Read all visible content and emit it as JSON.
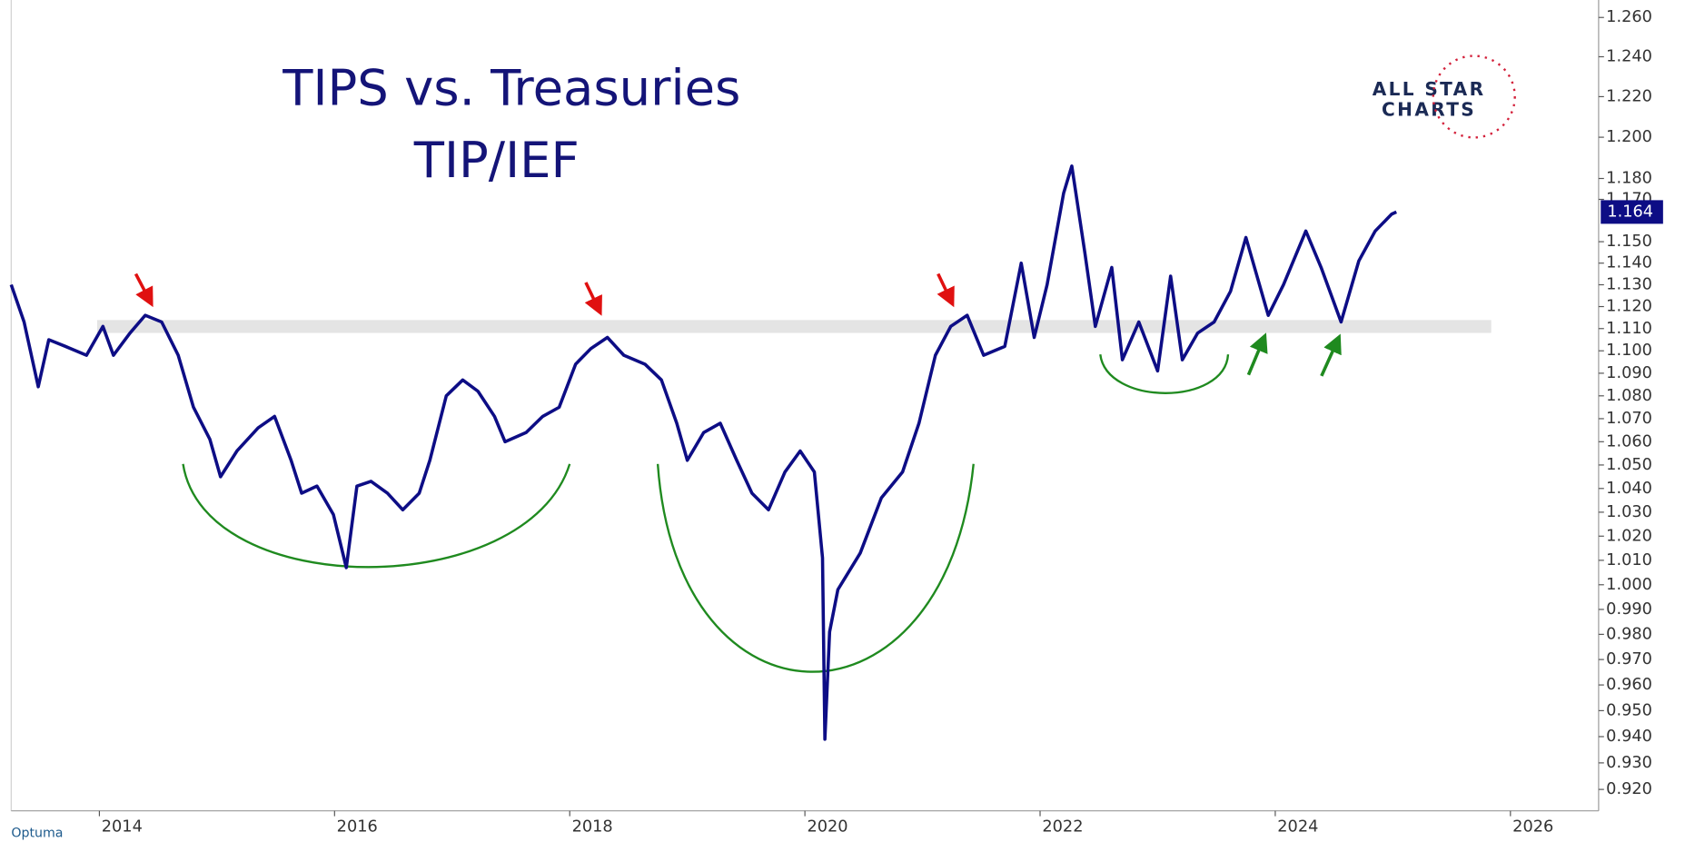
{
  "chart_data": {
    "type": "line",
    "title": "TIPS vs. Treasuries",
    "subtitle": "TIP/IEF",
    "log": true,
    "xlim": [
      2013.25,
      2026.75
    ],
    "xticks": [
      2014,
      2016,
      2018,
      2020,
      2022,
      2024,
      2026
    ],
    "ylim": [
      0.912,
      1.269
    ],
    "yticks": [
      {
        "value": 0.92,
        "label": "0.920"
      },
      {
        "value": 0.93,
        "label": "0.930"
      },
      {
        "value": 0.94,
        "label": "0.940"
      },
      {
        "value": 0.95,
        "label": "0.950"
      },
      {
        "value": 0.96,
        "label": "0.960"
      },
      {
        "value": 0.97,
        "label": "0.970"
      },
      {
        "value": 0.98,
        "label": "0.980"
      },
      {
        "value": 0.99,
        "label": "0.990"
      },
      {
        "value": 1.0,
        "label": "1.000"
      },
      {
        "value": 1.01,
        "label": "1.010"
      },
      {
        "value": 1.02,
        "label": "1.020"
      },
      {
        "value": 1.03,
        "label": "1.030"
      },
      {
        "value": 1.04,
        "label": "1.040"
      },
      {
        "value": 1.05,
        "label": "1.050"
      },
      {
        "value": 1.06,
        "label": "1.060"
      },
      {
        "value": 1.07,
        "label": "1.070"
      },
      {
        "value": 1.08,
        "label": "1.080"
      },
      {
        "value": 1.09,
        "label": "1.090"
      },
      {
        "value": 1.1,
        "label": "1.100"
      },
      {
        "value": 1.11,
        "label": "1.110"
      },
      {
        "value": 1.12,
        "label": "1.120"
      },
      {
        "value": 1.13,
        "label": "1.130"
      },
      {
        "value": 1.14,
        "label": "1.140"
      },
      {
        "value": 1.15,
        "label": "1.150"
      },
      {
        "value": 1.17,
        "label": "1.170"
      },
      {
        "value": 1.18,
        "label": "1.180"
      },
      {
        "value": 1.2,
        "label": "1.200"
      },
      {
        "value": 1.22,
        "label": "1.220"
      },
      {
        "value": 1.24,
        "label": "1.240"
      },
      {
        "value": 1.26,
        "label": "1.260"
      }
    ],
    "x": [
      2013.25,
      2013.36,
      2013.48,
      2013.57,
      2013.71,
      2013.89,
      2014.03,
      2014.12,
      2014.26,
      2014.39,
      2014.53,
      2014.67,
      2014.8,
      2014.94,
      2015.03,
      2015.17,
      2015.35,
      2015.49,
      2015.63,
      2015.72,
      2015.85,
      2015.99,
      2016.1,
      2016.19,
      2016.31,
      2016.45,
      2016.58,
      2016.72,
      2016.81,
      2016.95,
      2017.09,
      2017.22,
      2017.36,
      2017.45,
      2017.63,
      2017.77,
      2017.91,
      2018.05,
      2018.18,
      2018.32,
      2018.46,
      2018.64,
      2018.78,
      2018.91,
      2019.0,
      2019.14,
      2019.28,
      2019.42,
      2019.55,
      2019.69,
      2019.83,
      2019.96,
      2020.08,
      2020.15,
      2020.17,
      2020.21,
      2020.28,
      2020.47,
      2020.65,
      2020.83,
      2020.97,
      2021.11,
      2021.24,
      2021.38,
      2021.52,
      2021.7,
      2021.84,
      2021.95,
      2022.06,
      2022.2,
      2022.27,
      2022.38,
      2022.47,
      2022.61,
      2022.7,
      2022.84,
      2023.0,
      2023.11,
      2023.21,
      2023.34,
      2023.48,
      2023.62,
      2023.75,
      2023.94,
      2024.07,
      2024.26,
      2024.39,
      2024.56,
      2024.71,
      2024.85,
      2024.99,
      2025.03
    ],
    "series": [
      {
        "name": "TIP/IEF",
        "color": "#0d0d85",
        "values": [
          1.13,
          1.113,
          1.084,
          1.105,
          1.102,
          1.098,
          1.111,
          1.098,
          1.108,
          1.116,
          1.113,
          1.098,
          1.075,
          1.061,
          1.045,
          1.056,
          1.066,
          1.071,
          1.052,
          1.038,
          1.041,
          1.029,
          1.007,
          1.041,
          1.043,
          1.038,
          1.031,
          1.038,
          1.052,
          1.08,
          1.087,
          1.082,
          1.071,
          1.06,
          1.064,
          1.071,
          1.075,
          1.094,
          1.101,
          1.106,
          1.098,
          1.094,
          1.087,
          1.068,
          1.052,
          1.064,
          1.068,
          1.052,
          1.038,
          1.031,
          1.047,
          1.056,
          1.047,
          1.011,
          0.939,
          0.981,
          0.998,
          1.013,
          1.036,
          1.047,
          1.068,
          1.098,
          1.111,
          1.116,
          1.098,
          1.102,
          1.14,
          1.106,
          1.13,
          1.173,
          1.186,
          1.145,
          1.111,
          1.138,
          1.096,
          1.113,
          1.091,
          1.134,
          1.096,
          1.108,
          1.113,
          1.127,
          1.152,
          1.116,
          1.13,
          1.155,
          1.138,
          1.113,
          1.141,
          1.155,
          1.163,
          1.164
        ]
      }
    ]
  },
  "branding": {
    "logo": [
      "ALL STAR",
      "CHARTS"
    ],
    "footer": "Optuma"
  }
}
